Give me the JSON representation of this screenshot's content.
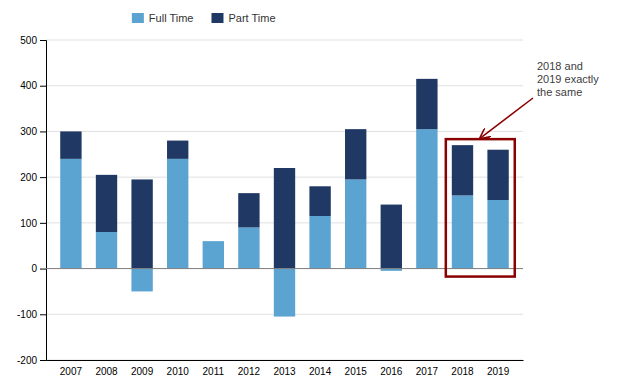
{
  "chart_data": {
    "type": "bar",
    "stacked": true,
    "categories": [
      "2007",
      "2008",
      "2009",
      "2010",
      "2011",
      "2012",
      "2013",
      "2014",
      "2015",
      "2016",
      "2017",
      "2018",
      "2019"
    ],
    "series": [
      {
        "name": "Full Time",
        "color": "#5BA3D0",
        "values": [
          240,
          80,
          -50,
          240,
          60,
          90,
          -105,
          115,
          195,
          -5,
          305,
          160,
          150
        ]
      },
      {
        "name": "Part Time",
        "color": "#1F3864",
        "values": [
          60,
          125,
          195,
          40,
          0,
          75,
          220,
          65,
          110,
          140,
          110,
          110,
          110
        ]
      }
    ],
    "ylim": [
      -200,
      500
    ],
    "yticks": [
      -200,
      -100,
      0,
      100,
      200,
      300,
      400,
      500
    ],
    "grid": true,
    "legend": "top",
    "annotations": [
      {
        "text": "2018 and\n2019 exactly\nthe same",
        "color": "#8B0000",
        "categories": [
          "2018",
          "2019"
        ]
      }
    ]
  }
}
